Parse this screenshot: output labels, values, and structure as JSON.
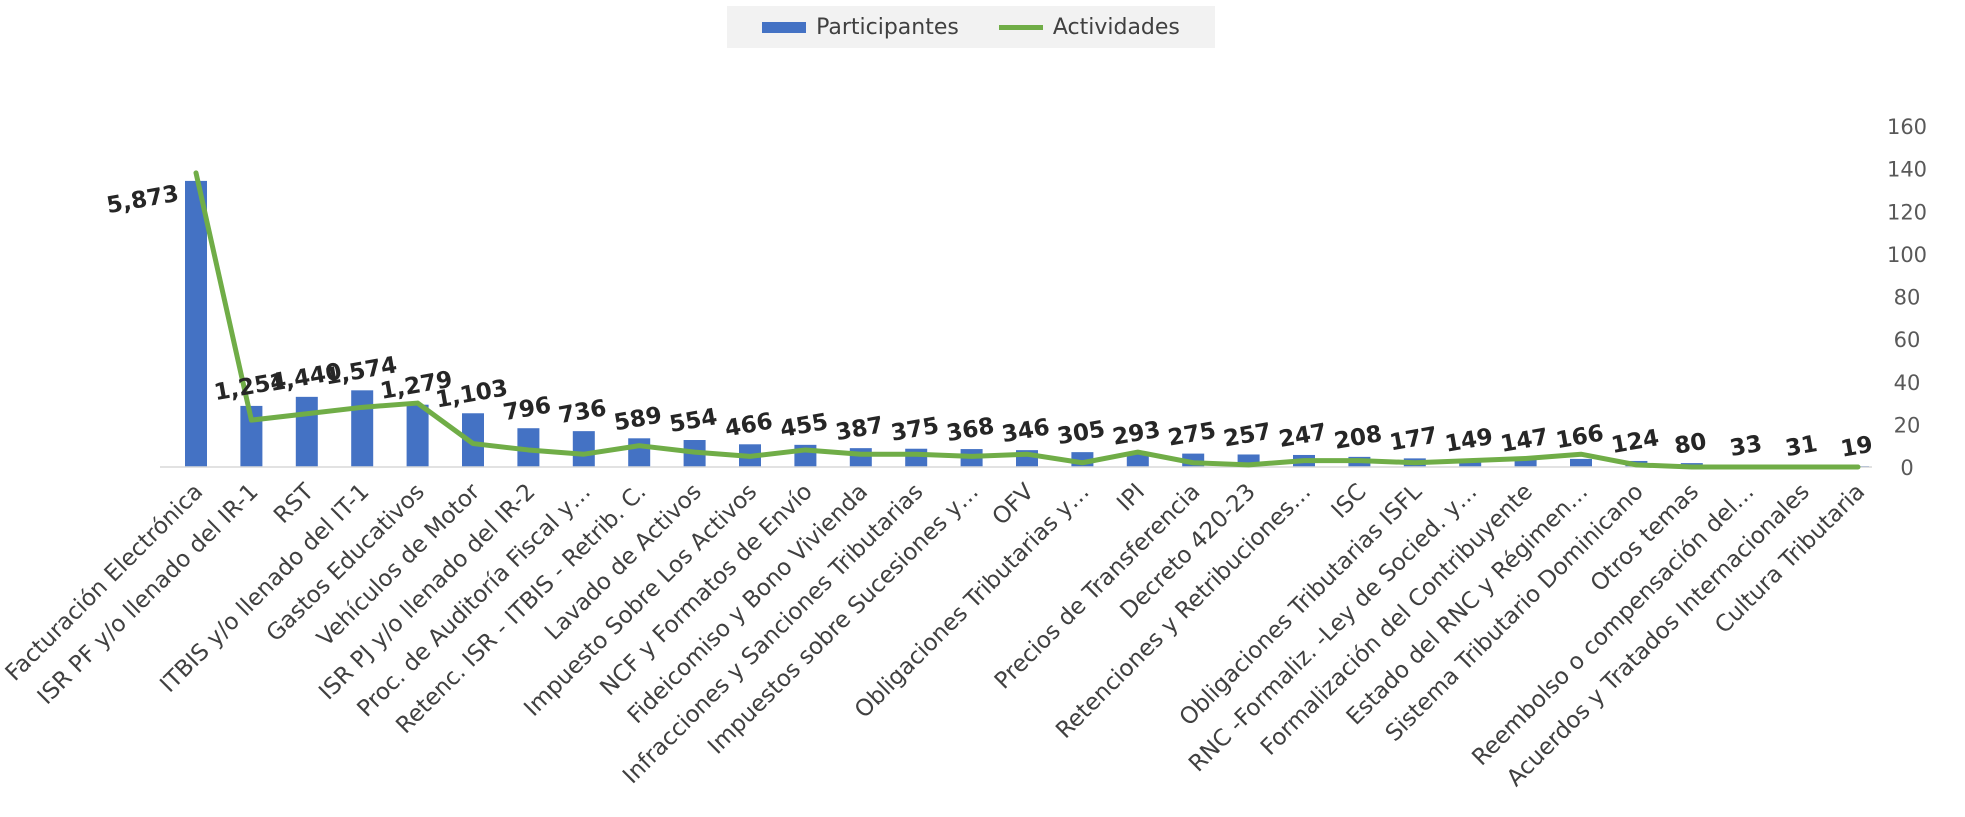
{
  "chart_data": {
    "type": "bar",
    "title": "",
    "legend_position": "top",
    "grid": false,
    "categories": [
      "Facturación Electrónica",
      "ISR PF y/o llenado del IR-1",
      "RST",
      "ITBIS y/o llenado del IT-1",
      "Gastos Educativos",
      "Vehículos de Motor",
      "ISR PJ y/o llenado del IR-2",
      "Proc. de Auditoría Fiscal y…",
      "Retenc. ISR - ITBIS - Retrib. C.",
      "Lavado de Activos",
      "Impuesto Sobre Los Activos",
      "NCF y Formatos de Envío",
      "Fideicomiso y Bono Vivienda",
      "Infracciones y Sanciones Tributarias",
      "Impuestos sobre Sucesiones y…",
      "OFV",
      "Obligaciones Tributarias y…",
      "IPI",
      "Precios de Transferencia",
      "Decreto 420-23",
      "Retenciones y Retribuciones…",
      "ISC",
      "Obligaciones Tributarias ISFL",
      "RNC -Formaliz. -Ley de Socied. y…",
      "Formalización del Contribuyente",
      "Estado del RNC y Régimen…",
      "Sistema Tributario Dominicano",
      "Otros temas",
      "Reembolso o compensación del…",
      "Acuerdos y Tratados Internacionales",
      "Cultura Tributaria"
    ],
    "series": [
      {
        "name": "Participantes",
        "type": "bar",
        "axis": "left",
        "color": "#4472c4",
        "values": [
          5873,
          1254,
          1440,
          1574,
          1279,
          1103,
          796,
          736,
          589,
          554,
          466,
          455,
          387,
          375,
          368,
          346,
          305,
          293,
          275,
          257,
          247,
          208,
          177,
          149,
          147,
          166,
          124,
          80,
          33,
          31,
          19
        ],
        "labels": [
          "5,873",
          "1,254",
          "1,440",
          "1,574",
          "1,279",
          "1,103",
          "796",
          "736",
          "589",
          "554",
          "466",
          "455",
          "387",
          "375",
          "368",
          "346",
          "305",
          "293",
          "275",
          "257",
          "247",
          "208",
          "177",
          "149",
          "147",
          "166",
          "124",
          "80",
          "33",
          "31",
          "19"
        ]
      },
      {
        "name": "Actividades",
        "type": "line",
        "axis": "right",
        "color": "#70ad47",
        "values": [
          138,
          22,
          25,
          28,
          30,
          11,
          8,
          6,
          10,
          7,
          5,
          8,
          6,
          6,
          5,
          6,
          2,
          7,
          2,
          1,
          3,
          3,
          2,
          3,
          4,
          6,
          1,
          0,
          0,
          0,
          0
        ]
      }
    ],
    "y_right": {
      "ylim": [
        0,
        160
      ],
      "ticks": [
        "0",
        "20",
        "40",
        "60",
        "80",
        "100",
        "120",
        "140",
        "160"
      ]
    },
    "y_left": {
      "ylim": [
        0,
        7000
      ],
      "visible": false
    }
  }
}
